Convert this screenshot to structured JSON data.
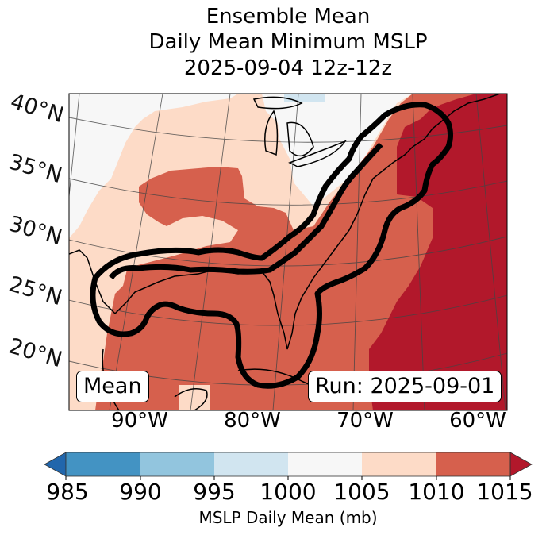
{
  "chart_data": {
    "type": "heatmap",
    "title_lines": [
      "Ensemble Mean",
      "Daily Mean Minimum MSLP",
      "2025-09-04 12z-12z"
    ],
    "colorbar": {
      "label": "MSLP Daily Mean (mb)",
      "ticks": [
        "985",
        "990",
        "995",
        "1000",
        "1005",
        "1010",
        "1015"
      ],
      "bins": [
        {
          "range": "<985",
          "color": "#2166ac"
        },
        {
          "range": "985-990",
          "color": "#4393c3"
        },
        {
          "range": "990-995",
          "color": "#92c5de"
        },
        {
          "range": "995-1000",
          "color": "#d1e5f0"
        },
        {
          "range": "1000-1005",
          "color": "#f7f7f7"
        },
        {
          "range": "1005-1010",
          "color": "#fddbc7"
        },
        {
          "range": "1010-1015",
          "color": "#d6604d"
        },
        {
          "range": ">1015",
          "color": "#b2182b"
        }
      ],
      "extend": "both"
    },
    "lat_labels": [
      "40°N",
      "35°N",
      "30°N",
      "25°N",
      "20°N"
    ],
    "lon_labels": [
      "90°W",
      "80°W",
      "70°W",
      "60°W"
    ],
    "lat_range": [
      15,
      42
    ],
    "lon_range": [
      -97,
      -58
    ],
    "contour": "thick black outline enclosing Gulf of Mexico and US East Coast to Nova Scotia"
  },
  "annotations": {
    "left_badge": "Mean",
    "right_badge": "Run: 2025-09-01"
  }
}
